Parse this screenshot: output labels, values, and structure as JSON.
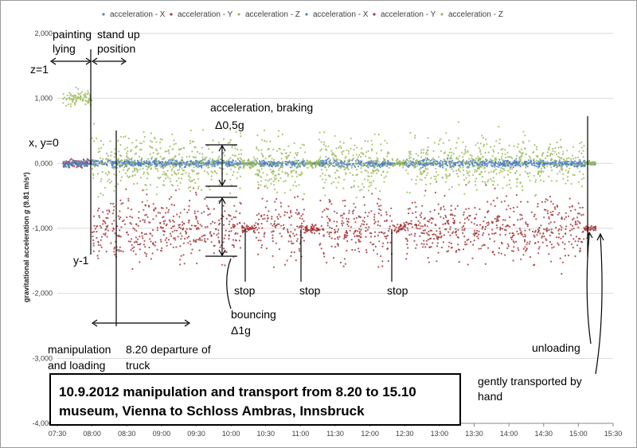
{
  "chart_data": {
    "type": "scatter",
    "ylabel_main": "gravitational acceleration ",
    "ylabel_g": "g",
    "ylabel_unit": " (9.81 m/s²)",
    "x_ticks": [
      "07:30",
      "08:00",
      "08:30",
      "09:00",
      "09:30",
      "10:00",
      "10:30",
      "11:00",
      "11:30",
      "12:00",
      "12:30",
      "13:00",
      "13:30",
      "14:00",
      "14:30",
      "15:00",
      "15:30"
    ],
    "x_range_minutes": [
      "07:30",
      "15:30"
    ],
    "y_ticks": [
      2000,
      1000,
      0,
      -1000,
      -2000,
      -3000,
      -4000
    ],
    "y_tick_labels": [
      "2,000",
      "1,000",
      "0,000",
      "-1,000",
      "-2,000",
      "-3,000",
      "-4,000"
    ],
    "ylim": [
      -4000,
      2000
    ],
    "grid": true,
    "legend_position": "top",
    "series": [
      {
        "name": "acceleration - X",
        "color": "#4f81bd",
        "base": 0,
        "spread": 60
      },
      {
        "name": "acceleration - Y",
        "color": "#a4373a",
        "base": -1000,
        "spread": 500
      },
      {
        "name": "acceleration - Z",
        "color": "#9bbb59",
        "base": 0,
        "spread": 450
      },
      {
        "name": "acceleration - X",
        "color": "#4f81bd",
        "base": 0,
        "spread": 60
      },
      {
        "name": "acceleration - Y",
        "color": "#a4373a",
        "base": -1000,
        "spread": 500
      },
      {
        "name": "acceleration - Z",
        "color": "#9bbb59",
        "base": 0,
        "spread": 450
      }
    ],
    "stops": [
      "10:15",
      "11:10",
      "12:25"
    ],
    "annotations": {
      "painting_lying": [
        "painting",
        "lying"
      ],
      "stand_up": [
        "stand up",
        "position"
      ],
      "z1": "z=1",
      "xy0": "x, y=0",
      "accel_braking": [
        "acceleration, braking",
        "Δ0,5g"
      ],
      "y_minus1": "y-1",
      "stop": "stop",
      "bouncing": [
        "bouncing",
        "Δ1g"
      ],
      "manipulation": [
        "manipulation",
        "and loading"
      ],
      "departure": [
        "8.20 departure of",
        "truck"
      ],
      "unloading": "unloading",
      "gently": [
        "gently transported by",
        "hand"
      ]
    },
    "title_lines": [
      "10.9.2012 manipulation and transport from 8.20 to 15.10",
      "museum, Vienna to Schloss Ambras, Innsbruck"
    ]
  }
}
